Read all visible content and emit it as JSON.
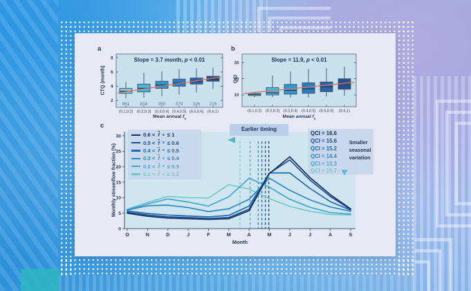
{
  "palette": {
    "card_bg": "#e7eaf4",
    "panel_bg": "#c9e1ed",
    "panel_c_bg": "#cfe6f1",
    "legend_bg": "#c7d6ec",
    "trend_line": "#d4766b",
    "axis": "#3c526b",
    "text": "#1e3156",
    "counts_text": "#50739b",
    "box_outline": "#3d5470",
    "whisker": "#49607a",
    "median": "#22374f",
    "box_fills": [
      "#7fccd3",
      "#4cb5d8",
      "#2f97cb",
      "#2a7cbd",
      "#2a63a6",
      "#27518c"
    ],
    "timing_arrow_light": "#51b7cb",
    "timing_arrow_dark": "#16305e"
  },
  "figure": {
    "panel_labels": {
      "a": "a",
      "b": "b",
      "c": "c"
    }
  },
  "chart_data": [
    {
      "id": "a",
      "type": "box",
      "annotation": {
        "pre": "Slope = 3.7 month, ",
        "italic": "p",
        "post": " < 0.01"
      },
      "ylabel": "CTQ (month)",
      "xlabel": {
        "pre": "Mean annual ",
        "var": "f",
        "sub": "s"
      },
      "ylim": [
        1.6,
        8.6
      ],
      "yticks": [
        2,
        4,
        6,
        8
      ],
      "categories": [
        "(0.1,0.2]",
        "(0.2,0.3]",
        "(0.3,0.4]",
        "(0.4,0.5]",
        "(0.5,0.6]",
        "(0.6,1)"
      ],
      "counts": [
        961,
        818,
        350,
        379,
        326,
        215
      ],
      "boxes": [
        {
          "low": 2.3,
          "q1": 3.0,
          "med": 3.3,
          "q3": 3.7,
          "high": 4.6
        },
        {
          "low": 2.4,
          "q1": 3.2,
          "med": 3.7,
          "q3": 4.3,
          "high": 5.9
        },
        {
          "low": 2.6,
          "q1": 3.7,
          "med": 4.15,
          "q3": 4.7,
          "high": 6.1
        },
        {
          "low": 2.8,
          "q1": 4.0,
          "med": 4.45,
          "q3": 5.0,
          "high": 6.4
        },
        {
          "low": 3.1,
          "q1": 4.3,
          "med": 4.7,
          "q3": 5.15,
          "high": 6.5
        },
        {
          "low": 3.6,
          "q1": 4.7,
          "med": 5.0,
          "q3": 5.4,
          "high": 6.6
        }
      ],
      "trend": {
        "start": 3.05,
        "end": 5.3
      }
    },
    {
      "id": "b",
      "type": "box",
      "annotation": {
        "pre": "Slope = 11.9, ",
        "italic": "p",
        "post": " < 0.01"
      },
      "ylabel": "QCI",
      "xlabel": {
        "pre": "Mean annual ",
        "var": "f",
        "sub": "s"
      },
      "ylim": [
        5,
        33
      ],
      "yticks": [
        10,
        20,
        30
      ],
      "categories": [
        "(0.1,0.2]",
        "(0.2,0.3]",
        "(0.3,0.4]",
        "(0.4,0.5]",
        "(0.5,0.6]",
        "(0.6,1)"
      ],
      "boxes": [
        {
          "low": 8.6,
          "q1": 9.6,
          "med": 10.2,
          "q3": 11.0,
          "high": 12.0
        },
        {
          "low": 8.6,
          "q1": 10.0,
          "med": 11.3,
          "q3": 14.5,
          "high": 22.0
        },
        {
          "low": 8.5,
          "q1": 10.5,
          "med": 12.8,
          "q3": 16.5,
          "high": 24.5
        },
        {
          "low": 8.6,
          "q1": 11.0,
          "med": 13.8,
          "q3": 17.5,
          "high": 26.0
        },
        {
          "low": 9.0,
          "q1": 12.0,
          "med": 15.0,
          "q3": 18.0,
          "high": 26.5
        },
        {
          "low": 9.5,
          "q1": 13.5,
          "med": 16.8,
          "q3": 20.0,
          "high": 27.5
        }
      ],
      "trend": {
        "start": 10.8,
        "end": 17.8
      }
    },
    {
      "id": "c",
      "type": "line",
      "ylabel": "Monthly streamflow fraction (%)",
      "xlabel": "Month",
      "ylim": [
        0,
        30
      ],
      "yticks": [
        0,
        5,
        10,
        15,
        20,
        25,
        30
      ],
      "months": [
        "O",
        "N",
        "D",
        "J",
        "F",
        "M",
        "A",
        "M",
        "J",
        "J",
        "A",
        "S"
      ],
      "var_symbol": "f",
      "var_sub": "s",
      "annotations": {
        "earlier_timing": "Earlier timing",
        "smaller_variation": "Smaller seasonal variation"
      },
      "series": [
        {
          "label_pre": "0.6 <",
          "label_post": "≤ 1",
          "qci": "QCI = 16.6",
          "color": "#17305c",
          "timing_x": 6.97,
          "values": [
            5.0,
            4.0,
            3.4,
            3.2,
            3.0,
            3.2,
            5.8,
            17.8,
            23.2,
            16.5,
            11.0,
            6.4
          ]
        },
        {
          "label_pre": "0.5 <",
          "label_post": "≤ 0.6",
          "qci": "QCI = 15.6",
          "color": "#1d4b97",
          "timing_x": 6.8,
          "values": [
            5.3,
            4.4,
            3.8,
            3.6,
            3.3,
            3.6,
            6.3,
            17.9,
            22.2,
            15.7,
            10.4,
            6.2
          ]
        },
        {
          "label_pre": "0.4 <",
          "label_post": "≤ 0.5",
          "qci": "QCI = 15.2",
          "color": "#1f68b2",
          "timing_x": 6.63,
          "values": [
            5.7,
            4.9,
            4.4,
            4.1,
            3.8,
            4.3,
            7.3,
            18.0,
            18.0,
            13.0,
            8.7,
            6.0
          ]
        },
        {
          "label_pre": "0.3 <",
          "label_post": "≤ 0.4",
          "qci": "QCI = 14.4",
          "color": "#2d87c3",
          "timing_x": 6.45,
          "values": [
            6.0,
            7.4,
            7.6,
            6.8,
            5.5,
            6.4,
            9.5,
            16.3,
            12.4,
            9.3,
            7.0,
            5.6
          ]
        },
        {
          "label_pre": "0.2 <",
          "label_post": "≤ 0.3",
          "qci": "QCI = 13.3",
          "color": "#3fa5d3",
          "timing_x": 6.05,
          "values": [
            6.1,
            8.0,
            9.6,
            8.6,
            7.3,
            10.3,
            16.3,
            13.4,
            9.5,
            6.9,
            5.2,
            4.7
          ]
        },
        {
          "label_pre": "0.1 <",
          "label_post": "≤ 0.2",
          "qci": "QCI = 10.7",
          "color": "#78c7c8",
          "timing_x": 5.55,
          "values": [
            6.3,
            8.5,
            10.4,
            10.0,
            9.9,
            14.2,
            12.8,
            9.7,
            7.2,
            5.6,
            4.6,
            4.4
          ]
        }
      ]
    }
  ]
}
